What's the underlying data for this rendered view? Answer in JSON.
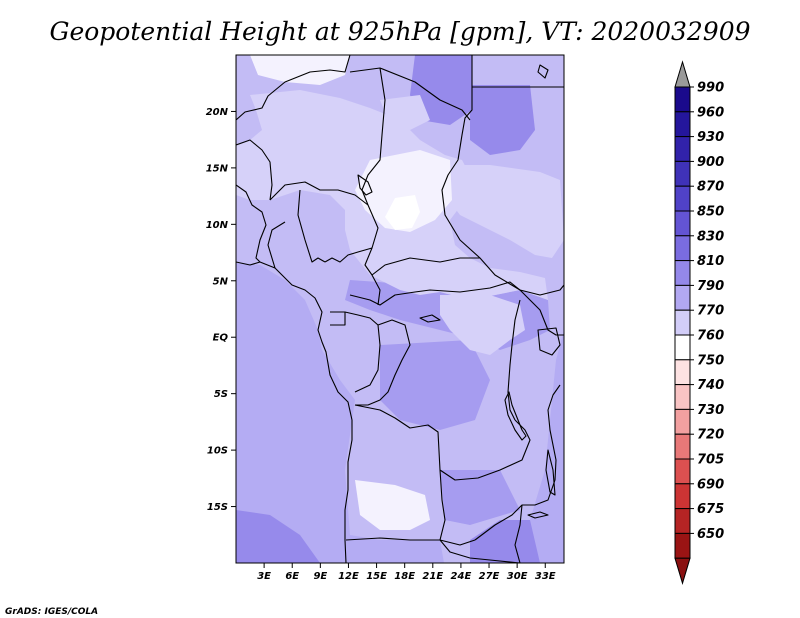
{
  "chart_data": {
    "type": "heatmap",
    "title": "Geopotential Height at 925hPa [gpm], VT: 2020032909",
    "variable": "Geopotential Height",
    "level": "925hPa",
    "units": "gpm",
    "valid_time": "2020032909",
    "x_axis": {
      "range": [
        0,
        35
      ],
      "unit": "degrees East",
      "ticks": [
        {
          "value": 3,
          "label": "3E"
        },
        {
          "value": 6,
          "label": "6E"
        },
        {
          "value": 9,
          "label": "9E"
        },
        {
          "value": 12,
          "label": "12E"
        },
        {
          "value": 15,
          "label": "15E"
        },
        {
          "value": 18,
          "label": "18E"
        },
        {
          "value": 21,
          "label": "21E"
        },
        {
          "value": 24,
          "label": "24E"
        },
        {
          "value": 27,
          "label": "27E"
        },
        {
          "value": 30,
          "label": "30E"
        },
        {
          "value": 33,
          "label": "33E"
        }
      ]
    },
    "y_axis": {
      "range": [
        -20,
        25
      ],
      "unit": "degrees latitude",
      "ticks": [
        {
          "value": 20,
          "label": "20N"
        },
        {
          "value": 15,
          "label": "15N"
        },
        {
          "value": 10,
          "label": "10N"
        },
        {
          "value": 5,
          "label": "5N"
        },
        {
          "value": 0,
          "label": "EQ"
        },
        {
          "value": -5,
          "label": "5S"
        },
        {
          "value": -10,
          "label": "10S"
        },
        {
          "value": -15,
          "label": "15S"
        }
      ]
    },
    "colorbar": {
      "levels": [
        990,
        960,
        930,
        900,
        870,
        850,
        830,
        810,
        790,
        770,
        760,
        750,
        740,
        730,
        720,
        705,
        690,
        675,
        650
      ],
      "colors": [
        "#1a0a8c",
        "#24169c",
        "#3122aa",
        "#3f32b8",
        "#5042c8",
        "#6354d4",
        "#7a6ce0",
        "#9488ea",
        "#b2a8f2",
        "#d2cdf8",
        "#ffffff",
        "#fde2e2",
        "#f9c4c4",
        "#f2a0a0",
        "#e87878",
        "#dc5050",
        "#cc3434",
        "#b52424",
        "#9a1414"
      ],
      "cap_top_color": "#9a9a9a",
      "cap_bottom_color": "#8a1010"
    },
    "field_colors": {
      "ocean": "#b4acf3",
      "land_base": "#c3bcf5",
      "high": "#a69cf0",
      "highest": "#968aeb",
      "low": "#d6d1f9",
      "lowest": "#f4f2fe",
      "minimum": "#ffffff"
    }
  },
  "credit": "GrADS: IGES/COLA"
}
